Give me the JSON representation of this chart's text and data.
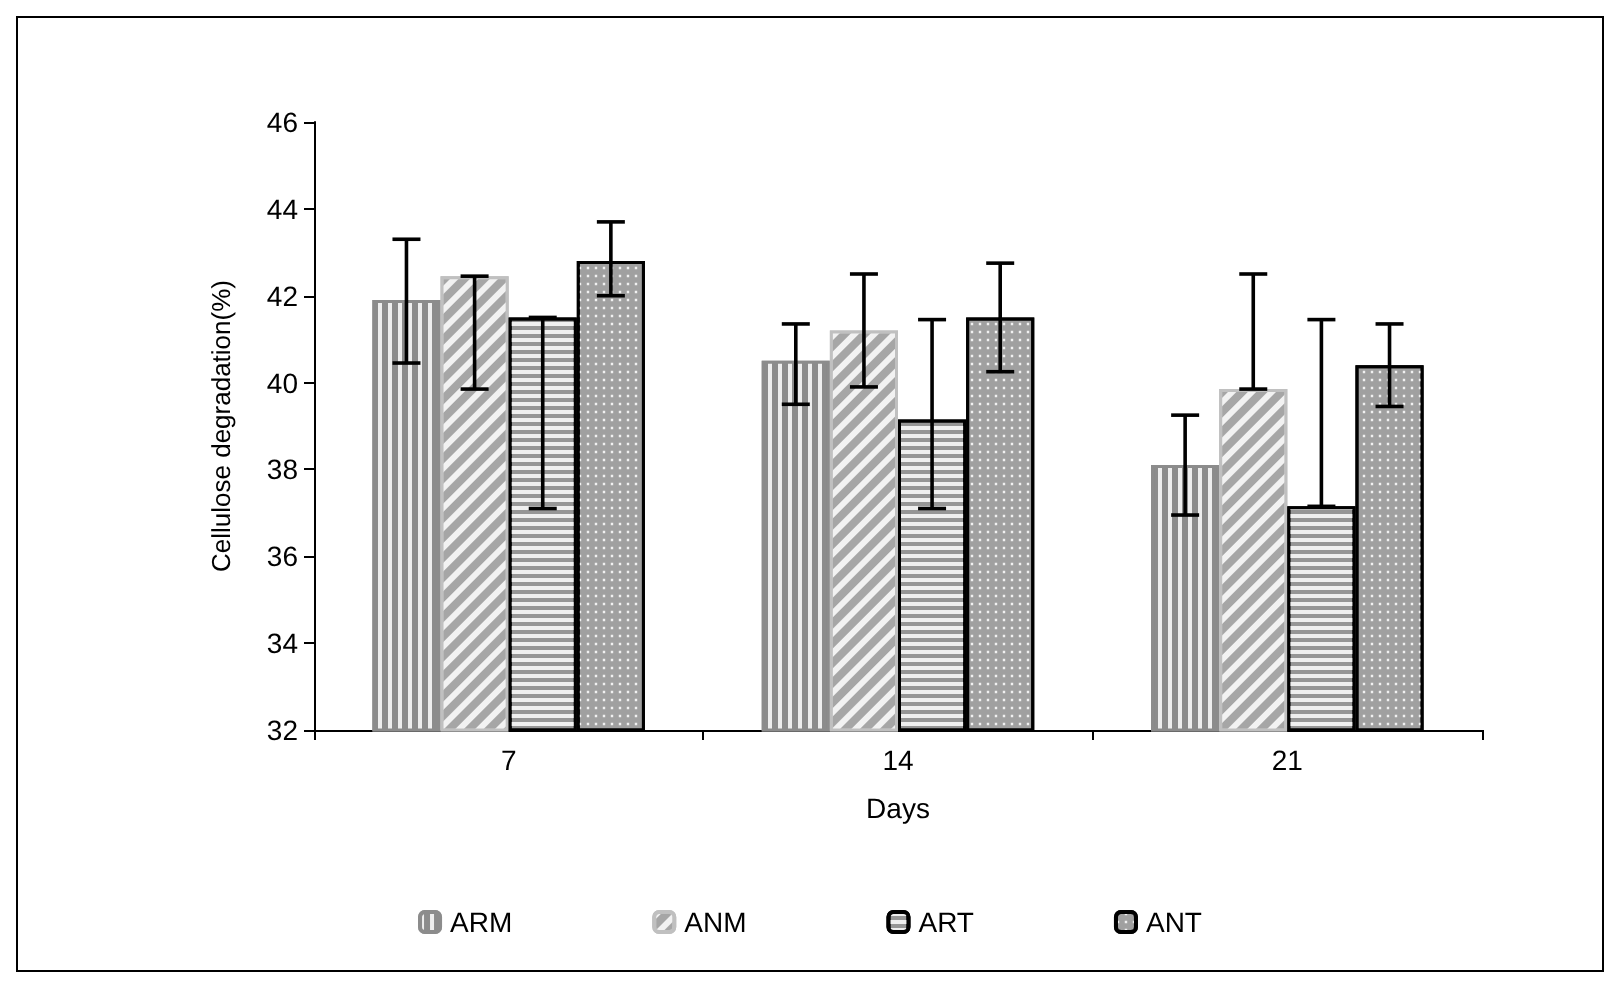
{
  "chart_data": {
    "type": "bar",
    "xlabel": "Days",
    "ylabel": "Cellulose degradation(%)",
    "categories": [
      "7",
      "14",
      "21"
    ],
    "series": [
      {
        "name": "ARM",
        "color": "#8c8c8c",
        "values": [
          41.9,
          40.5,
          38.1
        ],
        "errors": [
          [
            40.45,
            43.3
          ],
          [
            39.5,
            41.35
          ],
          [
            36.95,
            39.25
          ]
        ]
      },
      {
        "name": "ANM",
        "color": "#a6a6a6",
        "values": [
          42.45,
          41.2,
          39.85
        ],
        "errors": [
          [
            39.85,
            42.45
          ],
          [
            39.9,
            42.5
          ],
          [
            39.85,
            42.5
          ]
        ]
      },
      {
        "name": "ART",
        "color": "#969696",
        "values": [
          41.5,
          39.15,
          37.15
        ],
        "errors": [
          [
            37.1,
            41.5
          ],
          [
            37.1,
            41.45
          ],
          [
            37.15,
            41.45
          ]
        ]
      },
      {
        "name": "ANT",
        "color": "#a0a0a0",
        "values": [
          42.8,
          41.5,
          40.4
        ],
        "errors": [
          [
            42.0,
            43.7
          ],
          [
            40.25,
            42.75
          ],
          [
            39.45,
            41.35
          ]
        ]
      }
    ],
    "ylim": [
      32,
      46
    ],
    "yticks": [
      32,
      34,
      36,
      38,
      40,
      42,
      44,
      46
    ],
    "grid": false,
    "legend": "bottom"
  }
}
